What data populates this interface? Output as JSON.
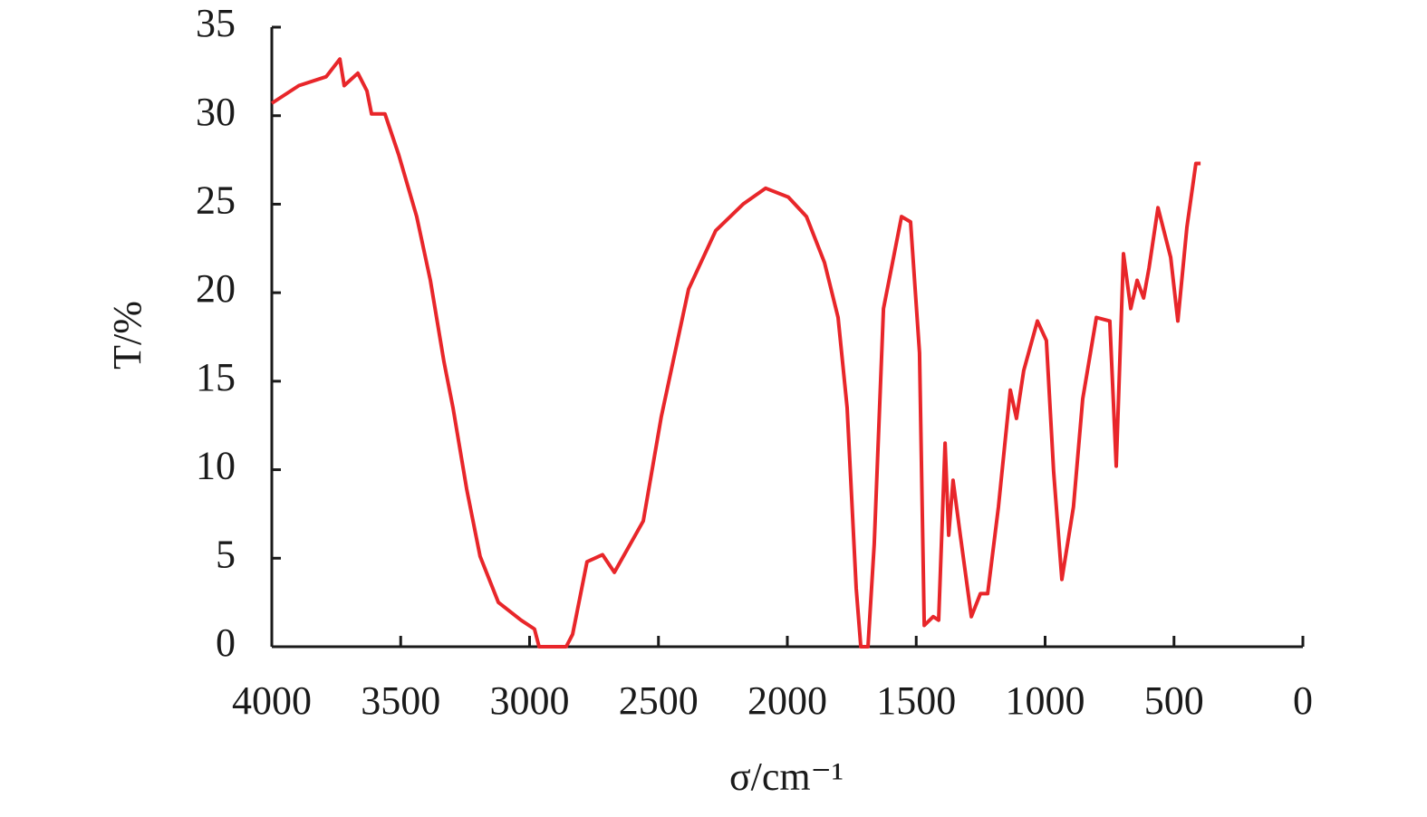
{
  "chart_data": {
    "type": "line",
    "xlabel": "σ/cm⁻¹",
    "ylabel": "T/%",
    "xlim": [
      4000,
      0
    ],
    "ylim": [
      0,
      35
    ],
    "xticks": [
      4000,
      3500,
      3000,
      2500,
      2000,
      1500,
      1000,
      500,
      0
    ],
    "yticks": [
      0,
      5,
      10,
      15,
      20,
      25,
      30,
      35
    ],
    "grid": false,
    "series": [
      {
        "color": "#e8262a",
        "x": [
          4000,
          3895,
          3789,
          3736,
          3719,
          3666,
          3631,
          3613,
          3561,
          3508,
          3438,
          3385,
          3332,
          3297,
          3244,
          3192,
          3121,
          3033,
          2981,
          2963,
          2858,
          2833,
          2777,
          2717,
          2671,
          2559,
          2489,
          2383,
          2278,
          2172,
          2084,
          1996,
          1926,
          1856,
          1803,
          1768,
          1733,
          1715,
          1687,
          1663,
          1627,
          1592,
          1557,
          1522,
          1487,
          1469,
          1434,
          1413,
          1388,
          1374,
          1357,
          1329,
          1286,
          1251,
          1223,
          1181,
          1135,
          1111,
          1083,
          1030,
          995,
          967,
          935,
          890,
          854,
          801,
          749,
          724,
          696,
          668,
          643,
          618,
          597,
          562,
          513,
          485,
          450,
          415,
          397
        ],
        "values": [
          30.7,
          31.7,
          32.2,
          33.2,
          31.7,
          32.4,
          31.4,
          30.1,
          30.1,
          27.8,
          24.3,
          20.7,
          16.1,
          13.5,
          8.9,
          5.1,
          2.5,
          1.5,
          1.0,
          0,
          0,
          0.7,
          4.8,
          5.2,
          4.2,
          7.1,
          13.0,
          20.2,
          23.5,
          25.0,
          25.9,
          25.4,
          24.3,
          21.7,
          18.6,
          13.5,
          3.3,
          0,
          0,
          5.8,
          19.1,
          21.7,
          24.3,
          24.0,
          16.6,
          1.2,
          1.7,
          1.5,
          11.5,
          6.3,
          9.4,
          6.3,
          1.7,
          3.0,
          3.0,
          7.9,
          14.5,
          12.9,
          15.6,
          18.4,
          17.3,
          9.9,
          3.8,
          7.9,
          14.0,
          18.6,
          18.4,
          10.2,
          22.2,
          19.1,
          20.7,
          19.7,
          21.4,
          24.8,
          22.0,
          18.4,
          23.7,
          27.3,
          27.3
        ]
      }
    ]
  }
}
